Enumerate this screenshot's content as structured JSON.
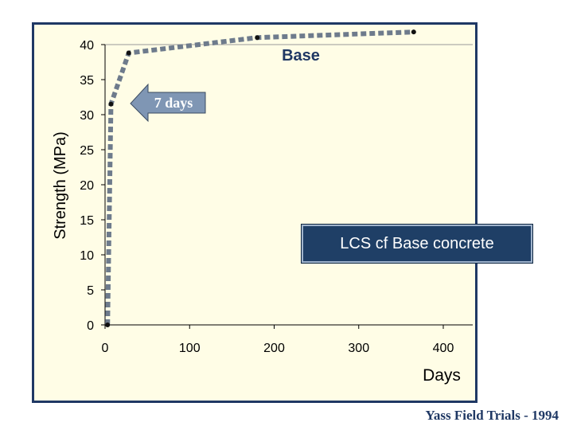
{
  "chart_data": {
    "type": "line",
    "title": "LCS cf Base concrete",
    "xlabel": "Days",
    "ylabel": "Strength (MPa)",
    "xlim": [
      0,
      400
    ],
    "ylim": [
      0,
      40
    ],
    "x_ticks": [
      0,
      100,
      200,
      300,
      400
    ],
    "y_ticks": [
      0,
      5,
      10,
      15,
      20,
      25,
      30,
      35,
      40
    ],
    "grid": "top gridline only",
    "series": [
      {
        "name": "Base",
        "x": [
          3,
          7,
          28,
          180,
          365
        ],
        "y": [
          0,
          31.5,
          38.8,
          41,
          41.8
        ]
      }
    ],
    "annotations": {
      "series_label": "Base",
      "arrow_label": "7 days"
    }
  },
  "footer": "Yass Field Trials - 1994",
  "colors": {
    "frame": "#1f3864",
    "plot_background": "#fffde6",
    "series_line": "#6e7b8c",
    "title_box": "#1f3f66",
    "arrow_fill": "#7f96b4"
  }
}
